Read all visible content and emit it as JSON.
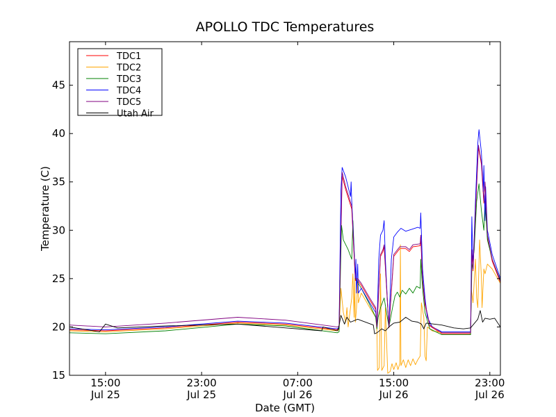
{
  "chart_data": {
    "type": "line",
    "title": "APOLLO TDC Temperatures",
    "xlabel": "Date (GMT)",
    "ylabel": "Temperature (C)",
    "x_units": "hours since Jul 25 00:00 GMT",
    "xlim": [
      12.0,
      47.88
    ],
    "ylim": [
      15,
      49.5
    ],
    "grid": false,
    "legend_position": "top-left",
    "x_ticks": [
      {
        "value": 15,
        "label1": "15:00",
        "label2": "Jul 25"
      },
      {
        "value": 23,
        "label1": "23:00",
        "label2": "Jul 25"
      },
      {
        "value": 31,
        "label1": "07:00",
        "label2": "Jul 26"
      },
      {
        "value": 39,
        "label1": "15:00",
        "label2": "Jul 26"
      },
      {
        "value": 47,
        "label1": "23:00",
        "label2": "Jul 26"
      }
    ],
    "y_ticks": [
      {
        "value": 15,
        "label": "15"
      },
      {
        "value": 20,
        "label": "20"
      },
      {
        "value": 25,
        "label": "25"
      },
      {
        "value": 30,
        "label": "30"
      },
      {
        "value": 35,
        "label": "35"
      },
      {
        "value": 40,
        "label": "40"
      },
      {
        "value": 45,
        "label": "45"
      }
    ],
    "series": [
      {
        "name": "TDC1",
        "color": "#ff0000",
        "points": [
          [
            12,
            19.7
          ],
          [
            15,
            19.6
          ],
          [
            20,
            19.9
          ],
          [
            26,
            20.5
          ],
          [
            30,
            20.3
          ],
          [
            34.3,
            19.7
          ],
          [
            34.45,
            20
          ],
          [
            34.7,
            35.6
          ],
          [
            35.0,
            34.2
          ],
          [
            35.5,
            32.2
          ],
          [
            35.8,
            24.8
          ],
          [
            36.0,
            24.8
          ],
          [
            36.3,
            24.3
          ],
          [
            37.0,
            22.8
          ],
          [
            37.5,
            21.8
          ],
          [
            37.6,
            19.9
          ],
          [
            37.75,
            23.8
          ],
          [
            37.9,
            27.3
          ],
          [
            38.1,
            27.8
          ],
          [
            38.2,
            28.3
          ],
          [
            38.6,
            19.9
          ],
          [
            39.0,
            27.3
          ],
          [
            39.5,
            28.1
          ],
          [
            40.0,
            28.1
          ],
          [
            40.3,
            27.8
          ],
          [
            40.6,
            28.3
          ],
          [
            41.2,
            28.4
          ],
          [
            41.25,
            29.3
          ],
          [
            41.4,
            24.8
          ],
          [
            41.6,
            22.3
          ],
          [
            42.0,
            20.1
          ],
          [
            43.0,
            19.3
          ],
          [
            45.4,
            19.3
          ],
          [
            45.5,
            27.8
          ],
          [
            45.6,
            25.8
          ],
          [
            45.8,
            31.8
          ],
          [
            46.05,
            38.6
          ],
          [
            46.3,
            36.8
          ],
          [
            46.5,
            32.8
          ],
          [
            46.6,
            34.8
          ],
          [
            46.8,
            29.3
          ],
          [
            47.2,
            26.8
          ],
          [
            47.88,
            24.6
          ]
        ]
      },
      {
        "name": "TDC2",
        "color": "#ffa500",
        "points": [
          [
            12,
            19.6
          ],
          [
            15,
            19.5
          ],
          [
            20,
            19.8
          ],
          [
            26,
            20.4
          ],
          [
            30,
            20.2
          ],
          [
            34.3,
            19.6
          ],
          [
            34.45,
            19.7
          ],
          [
            34.6,
            24
          ],
          [
            34.8,
            21.5
          ],
          [
            35.0,
            20.5
          ],
          [
            35.1,
            22
          ],
          [
            35.2,
            20
          ],
          [
            35.5,
            23
          ],
          [
            35.6,
            25.5
          ],
          [
            35.7,
            21
          ],
          [
            35.75,
            25
          ],
          [
            35.8,
            20.5
          ],
          [
            35.9,
            22
          ],
          [
            36.0,
            25
          ],
          [
            36.05,
            22.5
          ],
          [
            36.3,
            23.5
          ],
          [
            37.0,
            22
          ],
          [
            37.5,
            21
          ],
          [
            37.6,
            19.5
          ],
          [
            37.65,
            15.5
          ],
          [
            37.8,
            15.8
          ],
          [
            37.9,
            25.5
          ],
          [
            38.0,
            15.5
          ],
          [
            38.2,
            16
          ],
          [
            38.3,
            22
          ],
          [
            38.5,
            15.2
          ],
          [
            38.7,
            15.4
          ],
          [
            38.85,
            16.2
          ],
          [
            39.0,
            15.6
          ],
          [
            39.2,
            16.3
          ],
          [
            39.35,
            15.6
          ],
          [
            39.5,
            16.2
          ],
          [
            39.55,
            28.5
          ],
          [
            39.6,
            16
          ],
          [
            39.8,
            16.6
          ],
          [
            40.0,
            15.8
          ],
          [
            40.2,
            16.6
          ],
          [
            40.4,
            16.0
          ],
          [
            40.6,
            16.7
          ],
          [
            40.8,
            16.1
          ],
          [
            41.0,
            16.6
          ],
          [
            41.2,
            17
          ],
          [
            41.3,
            22.5
          ],
          [
            41.5,
            21
          ],
          [
            41.6,
            17
          ],
          [
            41.7,
            16.5
          ],
          [
            41.8,
            20
          ],
          [
            42.2,
            19.6
          ],
          [
            43.0,
            19.4
          ],
          [
            45.4,
            19.4
          ],
          [
            45.45,
            24
          ],
          [
            45.6,
            22.5
          ],
          [
            45.8,
            27
          ],
          [
            45.9,
            23
          ],
          [
            46.0,
            22
          ],
          [
            46.15,
            29
          ],
          [
            46.3,
            25
          ],
          [
            46.35,
            22
          ],
          [
            46.5,
            26
          ],
          [
            46.6,
            25.5
          ],
          [
            46.8,
            26.5
          ],
          [
            47.2,
            26
          ],
          [
            47.88,
            24.5
          ]
        ]
      },
      {
        "name": "TDC3",
        "color": "#008000",
        "points": [
          [
            12,
            19.4
          ],
          [
            15,
            19.3
          ],
          [
            20,
            19.6
          ],
          [
            26,
            20.3
          ],
          [
            30,
            20.1
          ],
          [
            34.3,
            19.4
          ],
          [
            34.45,
            19.5
          ],
          [
            34.65,
            30.5
          ],
          [
            34.8,
            29
          ],
          [
            35.2,
            28
          ],
          [
            35.5,
            27
          ],
          [
            35.6,
            31
          ],
          [
            35.8,
            25
          ],
          [
            36.3,
            24
          ],
          [
            37.0,
            22.3
          ],
          [
            37.5,
            21
          ],
          [
            37.6,
            19.8
          ],
          [
            37.7,
            21
          ],
          [
            37.9,
            22
          ],
          [
            38.2,
            23
          ],
          [
            38.6,
            20
          ],
          [
            38.9,
            22
          ],
          [
            39.1,
            23.2
          ],
          [
            39.3,
            23.6
          ],
          [
            39.5,
            23.1
          ],
          [
            39.7,
            23.8
          ],
          [
            40.0,
            23.4
          ],
          [
            40.3,
            24.0
          ],
          [
            40.6,
            23.5
          ],
          [
            40.9,
            24.2
          ],
          [
            41.2,
            24
          ],
          [
            41.25,
            27
          ],
          [
            41.4,
            24
          ],
          [
            41.6,
            21.5
          ],
          [
            42.0,
            19.8
          ],
          [
            43.0,
            19.2
          ],
          [
            45.4,
            19.2
          ],
          [
            45.5,
            26
          ],
          [
            45.7,
            28
          ],
          [
            45.9,
            33
          ],
          [
            46.1,
            34.8
          ],
          [
            46.3,
            32
          ],
          [
            46.5,
            30
          ],
          [
            46.6,
            33
          ],
          [
            46.8,
            29
          ],
          [
            47.2,
            27
          ],
          [
            47.88,
            24.8
          ]
        ]
      },
      {
        "name": "TDC4",
        "color": "#0000ff",
        "points": [
          [
            12,
            19.8
          ],
          [
            15,
            19.7
          ],
          [
            20,
            20.0
          ],
          [
            26,
            20.6
          ],
          [
            30,
            20.4
          ],
          [
            34.3,
            19.8
          ],
          [
            34.45,
            20
          ],
          [
            34.6,
            34
          ],
          [
            34.7,
            36.5
          ],
          [
            35.0,
            35.5
          ],
          [
            35.4,
            33.5
          ],
          [
            35.45,
            35
          ],
          [
            35.5,
            33
          ],
          [
            35.7,
            28
          ],
          [
            35.8,
            25
          ],
          [
            35.85,
            27
          ],
          [
            35.9,
            23.5
          ],
          [
            36.0,
            26.5
          ],
          [
            36.05,
            23.5
          ],
          [
            36.3,
            24
          ],
          [
            37.0,
            22.5
          ],
          [
            37.5,
            21.5
          ],
          [
            37.6,
            20
          ],
          [
            37.75,
            27
          ],
          [
            37.9,
            29.5
          ],
          [
            38.1,
            30
          ],
          [
            38.2,
            31
          ],
          [
            38.3,
            27
          ],
          [
            38.5,
            22
          ],
          [
            38.6,
            20
          ],
          [
            38.8,
            27
          ],
          [
            39.0,
            29.3
          ],
          [
            39.3,
            29.8
          ],
          [
            39.6,
            30.2
          ],
          [
            40.0,
            29.9
          ],
          [
            40.5,
            30.1
          ],
          [
            41.0,
            30.3
          ],
          [
            41.2,
            30.2
          ],
          [
            41.25,
            31.8
          ],
          [
            41.4,
            26
          ],
          [
            41.6,
            23
          ],
          [
            41.8,
            21
          ],
          [
            42.2,
            20
          ],
          [
            43.0,
            19.5
          ],
          [
            45.4,
            19.5
          ],
          [
            45.5,
            31.4
          ],
          [
            45.6,
            26
          ],
          [
            45.8,
            33
          ],
          [
            46.0,
            39
          ],
          [
            46.1,
            40.4
          ],
          [
            46.3,
            38
          ],
          [
            46.45,
            34
          ],
          [
            46.5,
            36.7
          ],
          [
            46.6,
            31
          ],
          [
            46.65,
            34.5
          ],
          [
            46.8,
            30
          ],
          [
            47.2,
            27.5
          ],
          [
            47.88,
            25
          ]
        ]
      },
      {
        "name": "TDC5",
        "color": "#800080",
        "points": [
          [
            12,
            20.2
          ],
          [
            15,
            20.0
          ],
          [
            20,
            20.4
          ],
          [
            26,
            21.0
          ],
          [
            30,
            20.7
          ],
          [
            34.3,
            20.0
          ],
          [
            34.45,
            20.1
          ],
          [
            34.7,
            36
          ],
          [
            35.0,
            34.5
          ],
          [
            35.5,
            32.5
          ],
          [
            35.8,
            25
          ],
          [
            36.0,
            25
          ],
          [
            36.3,
            24.5
          ],
          [
            37.0,
            23
          ],
          [
            37.5,
            22
          ],
          [
            37.6,
            20
          ],
          [
            37.75,
            24
          ],
          [
            37.9,
            27.5
          ],
          [
            38.1,
            28
          ],
          [
            38.2,
            28.5
          ],
          [
            38.6,
            20
          ],
          [
            39.0,
            27.5
          ],
          [
            39.5,
            28.3
          ],
          [
            40.0,
            28.3
          ],
          [
            40.3,
            28.0
          ],
          [
            40.6,
            28.5
          ],
          [
            41.2,
            28.6
          ],
          [
            41.25,
            29.5
          ],
          [
            41.4,
            25
          ],
          [
            41.6,
            22.5
          ],
          [
            42.0,
            20.2
          ],
          [
            43.0,
            19.4
          ],
          [
            45.4,
            19.4
          ],
          [
            45.5,
            28
          ],
          [
            45.6,
            26
          ],
          [
            45.8,
            32
          ],
          [
            46.05,
            38.8
          ],
          [
            46.3,
            37
          ],
          [
            46.5,
            33
          ],
          [
            46.6,
            35
          ],
          [
            46.8,
            29.5
          ],
          [
            47.2,
            27
          ],
          [
            47.88,
            24.7
          ]
        ]
      },
      {
        "name": "Utah Air",
        "color": "#000000",
        "points": [
          [
            12,
            20.0
          ],
          [
            14.5,
            19.5
          ],
          [
            15,
            20.3
          ],
          [
            16,
            19.9
          ],
          [
            20,
            20.1
          ],
          [
            26,
            20.3
          ],
          [
            30,
            19.9
          ],
          [
            33,
            19.6
          ],
          [
            33.1,
            20.0
          ],
          [
            34.3,
            19.6
          ],
          [
            34.4,
            19.8
          ],
          [
            34.6,
            21.2
          ],
          [
            34.9,
            20.3
          ],
          [
            35.1,
            21.0
          ],
          [
            35.4,
            20.5
          ],
          [
            36.0,
            20.8
          ],
          [
            37.3,
            20.2
          ],
          [
            37.4,
            19.3
          ],
          [
            37.6,
            19.4
          ],
          [
            38.0,
            19.8
          ],
          [
            38.3,
            19.6
          ],
          [
            38.6,
            20.0
          ],
          [
            39.0,
            20.4
          ],
          [
            39.5,
            20.5
          ],
          [
            40.0,
            21.0
          ],
          [
            40.5,
            20.6
          ],
          [
            41.0,
            20.5
          ],
          [
            41.3,
            20.3
          ],
          [
            41.5,
            19.8
          ],
          [
            41.7,
            20.4
          ],
          [
            43.0,
            20.2
          ],
          [
            44.0,
            19.9
          ],
          [
            44.8,
            19.8
          ],
          [
            45.4,
            19.9
          ],
          [
            46.0,
            20.8
          ],
          [
            46.2,
            21.7
          ],
          [
            46.4,
            20.5
          ],
          [
            46.6,
            20.9
          ],
          [
            47.0,
            20.8
          ],
          [
            47.4,
            20.9
          ],
          [
            47.88,
            20.0
          ]
        ]
      }
    ]
  }
}
